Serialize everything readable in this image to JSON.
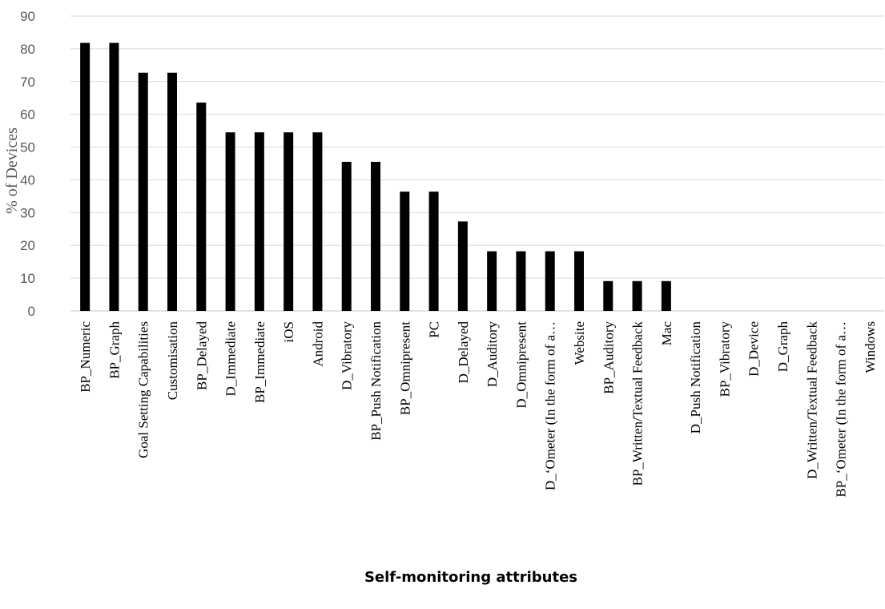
{
  "chart_data": {
    "type": "bar",
    "title": "",
    "xlabel": "Self-monitoring attributes",
    "ylabel": "% of Devices",
    "ylim": [
      0,
      90
    ],
    "yticks": [
      "0",
      "10",
      "20",
      "30",
      "40",
      "50",
      "60",
      "70",
      "80",
      "90"
    ],
    "grid": true,
    "categories": [
      "BP_Numeric",
      "BP_Graph",
      "Goal Setting Capabilities",
      "Customisation",
      "BP_Delayed",
      "D_Immediate",
      "BP_Immediate",
      "iOS",
      "Android",
      "D_Vibratory",
      "BP_Push Notification",
      "BP_Omnipresent",
      "PC",
      "D_Delayed",
      "D_Auditory",
      "D_Omnipresent",
      "D_‘Ometer (In the form of a…",
      "Website",
      "BP_Auditory",
      "BP_Written/Textual Feedback",
      "Mac",
      "D_Push Notification",
      "BP_Vibratory",
      "D_Device",
      "D_Graph",
      "D_Written/Textual Feedback",
      "BP_‘Ometer (In the form of a…",
      "Windows"
    ],
    "values": [
      81.8,
      81.8,
      72.7,
      72.7,
      63.6,
      54.5,
      54.5,
      54.5,
      54.5,
      45.5,
      45.5,
      36.4,
      36.4,
      27.3,
      18.2,
      18.2,
      18.2,
      18.2,
      9.1,
      9.1,
      9.1,
      0,
      0,
      0,
      0,
      0,
      0,
      0
    ],
    "bar_color": "#000000",
    "grid_color": "#d9d9d9"
  }
}
